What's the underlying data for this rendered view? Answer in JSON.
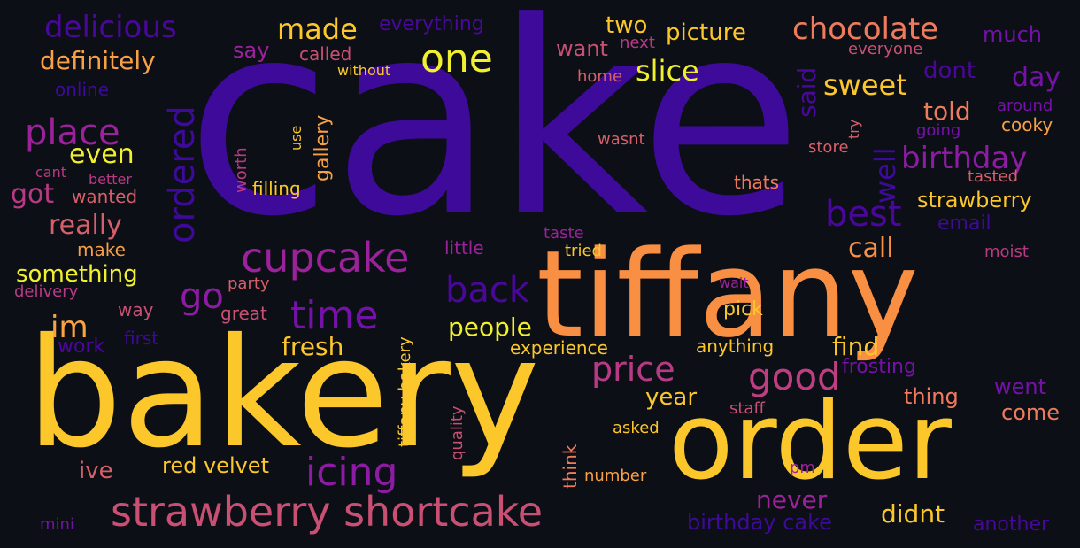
{
  "words": [
    {
      "text": "cake",
      "color": "#3d0a99"
    },
    {
      "text": "bakery",
      "color": "#fbc72b"
    },
    {
      "text": "tiffany",
      "color": "#f98f42"
    },
    {
      "text": "order",
      "color": "#fbc72b"
    },
    {
      "text": "strawberry shortcake",
      "color": "#c94f73"
    },
    {
      "text": "one",
      "color": "#f0f030"
    },
    {
      "text": "cupcake",
      "color": "#9c229c"
    },
    {
      "text": "delicious",
      "color": "#4a079c"
    },
    {
      "text": "chocolate",
      "color": "#ee7c5c"
    },
    {
      "text": "place",
      "color": "#9c229c"
    },
    {
      "text": "time",
      "color": "#7412a8"
    },
    {
      "text": "icing",
      "color": "#8e1ba3"
    },
    {
      "text": "price",
      "color": "#b83a85"
    },
    {
      "text": "good",
      "color": "#bd3e81"
    },
    {
      "text": "back",
      "color": "#4a079c"
    },
    {
      "text": "birthday",
      "color": "#8e1ba3"
    },
    {
      "text": "best",
      "color": "#4a079c"
    },
    {
      "text": "ordered",
      "color": "#3d0a99"
    },
    {
      "text": "made",
      "color": "#fbc72b"
    },
    {
      "text": "definitely",
      "color": "#f7a046"
    },
    {
      "text": "slice",
      "color": "#f0f030"
    },
    {
      "text": "sweet",
      "color": "#fbc72b"
    },
    {
      "text": "even",
      "color": "#f0f030"
    },
    {
      "text": "got",
      "color": "#b83a85"
    },
    {
      "text": "really",
      "color": "#d6606a"
    },
    {
      "text": "something",
      "color": "#f0f030"
    },
    {
      "text": "go",
      "color": "#8e1ba3"
    },
    {
      "text": "im",
      "color": "#f9a341"
    },
    {
      "text": "people",
      "color": "#f0f030"
    },
    {
      "text": "fresh",
      "color": "#fbc72b"
    },
    {
      "text": "find",
      "color": "#fbc72b"
    },
    {
      "text": "call",
      "color": "#f98f42"
    },
    {
      "text": "told",
      "color": "#ee7c5c"
    },
    {
      "text": "picture",
      "color": "#fbc72b"
    },
    {
      "text": "two",
      "color": "#fbc72b"
    },
    {
      "text": "much",
      "color": "#7412a8"
    },
    {
      "text": "day",
      "color": "#7412a8"
    },
    {
      "text": "dont",
      "color": "#4a079c"
    },
    {
      "text": "said",
      "color": "#4a079c"
    },
    {
      "text": "well",
      "color": "#3d0a99"
    },
    {
      "text": "strawberry",
      "color": "#fbc72b"
    },
    {
      "text": "never",
      "color": "#9c229c"
    },
    {
      "text": "didnt",
      "color": "#fbc72b"
    },
    {
      "text": "red velvet",
      "color": "#fbc72b"
    },
    {
      "text": "year",
      "color": "#fbc72b"
    },
    {
      "text": "went",
      "color": "#7412a8"
    },
    {
      "text": "come",
      "color": "#ee7c5c"
    },
    {
      "text": "thing",
      "color": "#ee7c5c"
    },
    {
      "text": "ive",
      "color": "#d6606a"
    },
    {
      "text": "say",
      "color": "#9c229c"
    },
    {
      "text": "want",
      "color": "#c94f73"
    },
    {
      "text": "everything",
      "color": "#4a079c"
    },
    {
      "text": "gallery",
      "color": "#f7a046"
    },
    {
      "text": "work",
      "color": "#4a079c"
    },
    {
      "text": "filling",
      "color": "#fbc72b"
    },
    {
      "text": "wanted",
      "color": "#d6606a"
    },
    {
      "text": "cooky",
      "color": "#f7a046"
    },
    {
      "text": "make",
      "color": "#f7a046"
    },
    {
      "text": "birthday cake",
      "color": "#3d0a99"
    },
    {
      "text": "another",
      "color": "#4a079c"
    },
    {
      "text": "email",
      "color": "#3d0a99"
    },
    {
      "text": "online",
      "color": "#3d0a99"
    },
    {
      "text": "first",
      "color": "#3d0a99"
    },
    {
      "text": "called",
      "color": "#c94f73"
    },
    {
      "text": "way",
      "color": "#c94f73"
    },
    {
      "text": "great",
      "color": "#c94f73"
    },
    {
      "text": "pick",
      "color": "#fbc72b"
    },
    {
      "text": "anything",
      "color": "#fbc72b"
    },
    {
      "text": "experience",
      "color": "#fbc72b"
    },
    {
      "text": "frosting",
      "color": "#7412a8"
    },
    {
      "text": "delivery",
      "color": "#b83a85"
    },
    {
      "text": "party",
      "color": "#d6606a"
    },
    {
      "text": "little",
      "color": "#9c229c"
    },
    {
      "text": "tried",
      "color": "#fbc72b"
    },
    {
      "text": "thats",
      "color": "#ee7c5c"
    },
    {
      "text": "tasted",
      "color": "#d6606a"
    },
    {
      "text": "moist",
      "color": "#b83a85"
    },
    {
      "text": "home",
      "color": "#d6606a"
    },
    {
      "text": "wasnt",
      "color": "#d6606a"
    },
    {
      "text": "store",
      "color": "#d6606a"
    },
    {
      "text": "going",
      "color": "#7412a8"
    },
    {
      "text": "around",
      "color": "#7412a8"
    },
    {
      "text": "everyone",
      "color": "#c94f73"
    },
    {
      "text": "next",
      "color": "#b83a85"
    },
    {
      "text": "without",
      "color": "#fbc72b"
    },
    {
      "text": "asked",
      "color": "#fbc72b"
    },
    {
      "text": "staff",
      "color": "#c94f73"
    },
    {
      "text": "wait",
      "color": "#9c229c"
    },
    {
      "text": "number",
      "color": "#f7a046"
    },
    {
      "text": "pm",
      "color": "#9c229c"
    },
    {
      "text": "mini",
      "color": "#7412a8"
    },
    {
      "text": "taste",
      "color": "#9c229c"
    },
    {
      "text": "cant",
      "color": "#b83a85"
    },
    {
      "text": "better",
      "color": "#b83a85"
    },
    {
      "text": "use",
      "color": "#fbc72b"
    },
    {
      "text": "worth",
      "color": "#b83a85"
    },
    {
      "text": "try",
      "color": "#d6606a"
    },
    {
      "text": "tiffany bakery",
      "color": "#fbc72b"
    },
    {
      "text": "quality",
      "color": "#c94f73"
    },
    {
      "text": "think",
      "color": "#ee7c5c"
    }
  ]
}
